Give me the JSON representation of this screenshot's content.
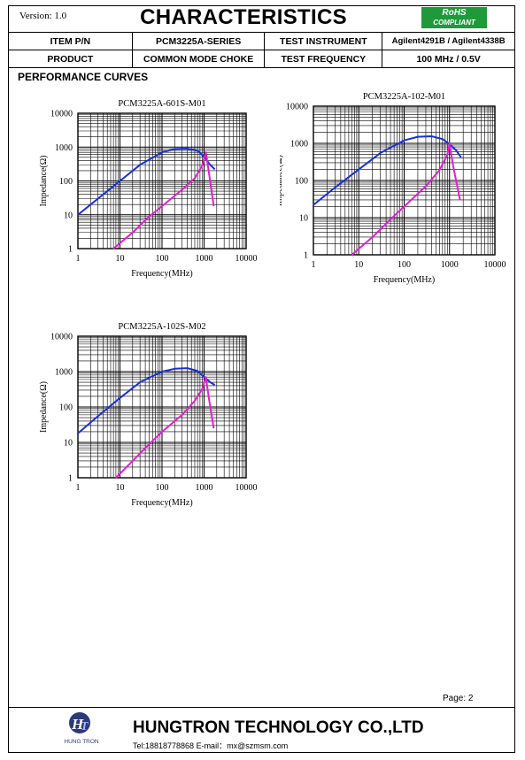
{
  "header": {
    "version": "Version: 1.0",
    "title": "CHARACTERISTICS",
    "rohs_line1": "RoHS",
    "rohs_line2": "COMPLIANT"
  },
  "info_table": {
    "row1": [
      "ITEM P/N",
      "PCM3225A-SERIES",
      "TEST INSTRUMENT",
      "Agilent4291B / Agilent4338B"
    ],
    "row2": [
      "PRODUCT",
      "COMMON MODE CHOKE",
      "TEST FREQUENCY",
      "100 MHz / 0.5V"
    ]
  },
  "section_title": "PERFORMANCE CURVES",
  "colors": {
    "common_mode": "#1a2fd6",
    "differential_mode": "#e020d0",
    "rohs": "#1f9a3b"
  },
  "chart_data": [
    {
      "type": "line",
      "title": "PCM3225A-601S-M01",
      "xlabel": "Frequency(MHz)",
      "ylabel": "Impedance(Ω)",
      "x_scale": "log",
      "y_scale": "log",
      "xlim": [
        1,
        10000
      ],
      "ylim": [
        1,
        10000
      ],
      "x_ticks": [
        "1",
        "10",
        "100",
        "1000",
        "10000"
      ],
      "y_ticks": [
        "1",
        "10",
        "100",
        "1000",
        "10000"
      ],
      "grid": true,
      "series": [
        {
          "color": "#1a2fd6",
          "x": [
            1,
            3,
            10,
            30,
            100,
            200,
            400,
            700,
            1000,
            1400,
            1800
          ],
          "y": [
            10,
            30,
            100,
            300,
            700,
            880,
            900,
            780,
            520,
            300,
            220
          ]
        },
        {
          "color": "#e020d0",
          "x": [
            7,
            20,
            50,
            100,
            300,
            600,
            900,
            1100,
            1300,
            1700
          ],
          "y": [
            1,
            3,
            9,
            18,
            55,
            120,
            280,
            700,
            180,
            18
          ]
        }
      ]
    },
    {
      "type": "line",
      "title": "PCM3225A-102-M01",
      "xlabel": "Frequency(MHz)",
      "ylabel": "Impedance(Ω)",
      "x_scale": "log",
      "y_scale": "log",
      "xlim": [
        1,
        10000
      ],
      "ylim": [
        1,
        10000
      ],
      "x_ticks": [
        "1",
        "10",
        "100",
        "1000",
        "10000"
      ],
      "y_ticks": [
        "1",
        "10",
        "100",
        "1000",
        "10000"
      ],
      "grid": true,
      "series": [
        {
          "color": "#1a2fd6",
          "x": [
            1,
            3,
            10,
            30,
            100,
            200,
            400,
            700,
            1000,
            1400,
            1800
          ],
          "y": [
            22,
            65,
            200,
            550,
            1200,
            1500,
            1550,
            1300,
            950,
            650,
            420
          ]
        },
        {
          "color": "#e020d0",
          "x": [
            7,
            20,
            50,
            100,
            300,
            600,
            900,
            1000,
            1200,
            1700
          ],
          "y": [
            1,
            3,
            9,
            20,
            70,
            190,
            500,
            1000,
            250,
            30
          ]
        }
      ]
    },
    {
      "type": "line",
      "title": "PCM3225A-102S-M02",
      "xlabel": "Frequency(MHz)",
      "ylabel": "Impedance(Ω)",
      "x_scale": "log",
      "y_scale": "log",
      "xlim": [
        1,
        10000
      ],
      "ylim": [
        1,
        10000
      ],
      "x_ticks": [
        "1",
        "10",
        "100",
        "1000",
        "10000"
      ],
      "y_ticks": [
        "1",
        "10",
        "100",
        "1000",
        "10000"
      ],
      "grid": true,
      "series": [
        {
          "color": "#1a2fd6",
          "x": [
            1,
            3,
            10,
            30,
            100,
            200,
            400,
            700,
            1000,
            1400,
            1800
          ],
          "y": [
            18,
            55,
            180,
            500,
            1000,
            1200,
            1250,
            1050,
            700,
            500,
            420
          ]
        },
        {
          "color": "#e020d0",
          "x": [
            8,
            20,
            50,
            100,
            300,
            600,
            900,
            1100,
            1300,
            1700
          ],
          "y": [
            1,
            3,
            9,
            20,
            60,
            150,
            320,
            700,
            180,
            25
          ]
        }
      ]
    }
  ],
  "footer": {
    "page": "Page:   2",
    "company": "HUNGTRON TECHNOLOGY CO.,LTD",
    "contact": "Tel:18818778868 E-mail：mx@szmsm.com",
    "logo_text": "HUNG TRON"
  }
}
